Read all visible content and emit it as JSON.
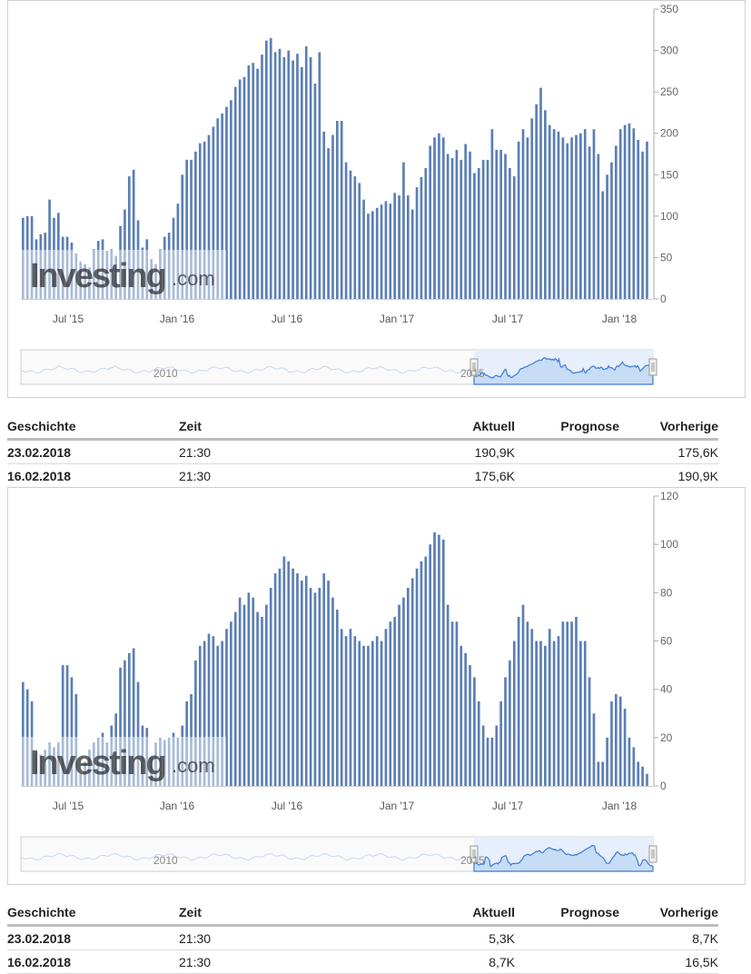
{
  "charts": {
    "chart1": {
      "y_ticks": [
        "350",
        "300",
        "250",
        "200",
        "150",
        "100",
        "50",
        "0"
      ],
      "x_ticks": [
        "Jul '15",
        "Jan '16",
        "Jul '16",
        "Jan '17",
        "Jul '17",
        "Jan '18"
      ],
      "watermark": "Investing",
      "watermark_suffix": ".com",
      "navigator_labels": [
        "2010",
        "2015"
      ]
    },
    "chart2": {
      "y_ticks": [
        "120",
        "100",
        "80",
        "60",
        "40",
        "20",
        "0"
      ],
      "x_ticks": [
        "Jul '15",
        "Jan '16",
        "Jul '16",
        "Jan '17",
        "Jul '17",
        "Jan '18"
      ],
      "watermark": "Investing",
      "watermark_suffix": ".com",
      "navigator_labels": [
        "2010",
        "2015"
      ]
    }
  },
  "chart_data": [
    {
      "type": "bar",
      "ylim": [
        0,
        350
      ],
      "x_range": [
        "2015-04",
        "2018-02"
      ],
      "color": "#5b7fb4",
      "values": [
        98,
        100,
        100,
        72,
        78,
        80,
        120,
        98,
        104,
        75,
        75,
        68,
        55,
        45,
        42,
        38,
        60,
        70,
        72,
        58,
        60,
        52,
        88,
        108,
        148,
        156,
        95,
        62,
        72,
        48,
        42,
        60,
        75,
        80,
        98,
        115,
        150,
        168,
        168,
        178,
        188,
        190,
        198,
        208,
        218,
        224,
        232,
        240,
        256,
        265,
        268,
        282,
        285,
        278,
        295,
        312,
        315,
        298,
        302,
        292,
        300,
        288,
        296,
        280,
        305,
        292,
        260,
        298,
        202,
        182,
        198,
        215,
        215,
        165,
        155,
        148,
        140,
        120,
        103,
        106,
        110,
        114,
        118,
        115,
        128,
        125,
        165,
        125,
        108,
        135,
        147,
        158,
        185,
        195,
        200,
        195,
        175,
        170,
        180,
        168,
        187,
        178,
        152,
        158,
        168,
        168,
        205,
        180,
        180,
        175,
        158,
        148,
        190,
        205,
        195,
        218,
        235,
        255,
        228,
        210,
        205,
        202,
        195,
        188,
        195,
        198,
        200,
        205,
        184,
        205,
        175,
        130,
        150,
        165,
        185,
        205,
        210,
        212,
        206,
        192,
        178,
        190
      ],
      "visible_values_note": "weekly bars (K)"
    },
    {
      "type": "bar",
      "ylim": [
        0,
        120
      ],
      "x_range": [
        "2015-04",
        "2018-02"
      ],
      "color": "#5b7fb4",
      "values": [
        43,
        40,
        35,
        14,
        13,
        15,
        18,
        16,
        18,
        50,
        50,
        45,
        38,
        5,
        10,
        15,
        18,
        20,
        22,
        18,
        25,
        30,
        49,
        52,
        55,
        57,
        43,
        25,
        24,
        12,
        18,
        20,
        19,
        20,
        22,
        20,
        25,
        35,
        38,
        52,
        58,
        60,
        63,
        62,
        58,
        60,
        65,
        68,
        72,
        78,
        75,
        80,
        78,
        72,
        70,
        75,
        82,
        88,
        90,
        95,
        93,
        90,
        88,
        85,
        87,
        82,
        80,
        82,
        88,
        85,
        78,
        73,
        65,
        62,
        65,
        62,
        60,
        58,
        58,
        60,
        62,
        60,
        65,
        68,
        70,
        75,
        78,
        82,
        86,
        90,
        93,
        95,
        100,
        105,
        104,
        102,
        75,
        68,
        68,
        58,
        55,
        50,
        45,
        35,
        25,
        20,
        20,
        25,
        35,
        45,
        52,
        60,
        70,
        75,
        68,
        65,
        60,
        60,
        58,
        65,
        60,
        62,
        68,
        68,
        68,
        70,
        60,
        60,
        45,
        30,
        10,
        10,
        20,
        35,
        38,
        37,
        32,
        20,
        16,
        10,
        8,
        5
      ],
      "visible_values_note": "weekly bars (K)"
    }
  ],
  "tables": {
    "table1": {
      "headers": {
        "history": "Geschichte",
        "time": "Zeit",
        "actual": "Aktuell",
        "forecast": "Prognose",
        "previous": "Vorherige"
      },
      "rows": [
        {
          "date": "23.02.2018",
          "time": "21:30",
          "actual": "190,9K",
          "forecast": "",
          "previous": "175,6K"
        },
        {
          "date": "16.02.2018",
          "time": "21:30",
          "actual": "175,6K",
          "forecast": "",
          "previous": "190,9K"
        }
      ]
    },
    "table2": {
      "headers": {
        "history": "Geschichte",
        "time": "Zeit",
        "actual": "Aktuell",
        "forecast": "Prognose",
        "previous": "Vorherige"
      },
      "rows": [
        {
          "date": "23.02.2018",
          "time": "21:30",
          "actual": "5,3K",
          "forecast": "",
          "previous": "8,7K"
        },
        {
          "date": "16.02.2018",
          "time": "21:30",
          "actual": "8,7K",
          "forecast": "",
          "previous": "16,5K"
        }
      ]
    }
  },
  "colors": {
    "bar": "#5b7fb4",
    "navigator_fill": "#c7dcf5",
    "navigator_line": "#3d7bd1",
    "axis": "#aaaaaa"
  }
}
